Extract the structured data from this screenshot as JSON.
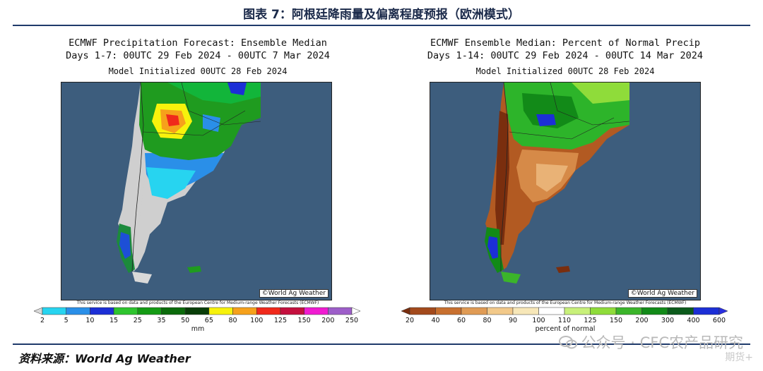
{
  "figure": {
    "title": "图表 7：阿根廷降雨量及偏离程度预报（欧洲模式）",
    "source": "资料来源：World Ag Weather",
    "watermark": "公众号 · CFC农产品研究",
    "watermark_sub": "期货+"
  },
  "maps": [
    {
      "title_line1": "ECMWF Precipitation Forecast: Ensemble Median",
      "title_line2": "Days 1-7: 00UTC 29 Feb 2024 - 00UTC 7 Mar 2024",
      "initialized": "Model Initialized 00UTC 28 Feb 2024",
      "credit": "©World Ag Weather",
      "disclaimer": "This service is based on data and products of the European Centre for Medium-range Weather Forecasts (ECMWF)",
      "legend_ticks": [
        "2",
        "5",
        "10",
        "15",
        "25",
        "35",
        "50",
        "65",
        "80",
        "100",
        "125",
        "150",
        "200",
        "250"
      ],
      "legend_colors": [
        "#d9d9d9",
        "#27d4f0",
        "#2a8fe8",
        "#1c2fd6",
        "#2ec42e",
        "#149a14",
        "#0b6b0b",
        "#083d08",
        "#f7f20c",
        "#f6a11b",
        "#f0291b",
        "#c4103e",
        "#f01bd1",
        "#9d5ec9",
        "#ffffff"
      ],
      "unit": "mm"
    },
    {
      "title_line1": "ECMWF Ensemble Median: Percent of Normal Precip",
      "title_line2": "Days 1-14: 00UTC 29 Feb 2024 - 00UTC 14 Mar 2024",
      "initialized": "Model Initialized 00UTC 28 Feb 2024",
      "credit": "©World Ag Weather",
      "disclaimer": "This service is based on data and products of the European Centre for Medium-range Weather Forecasts (ECMWF)",
      "legend_ticks": [
        "20",
        "40",
        "60",
        "80",
        "90",
        "100",
        "110",
        "125",
        "150",
        "200",
        "300",
        "400",
        "600"
      ],
      "legend_colors": [
        "#7a2e0e",
        "#a34a1c",
        "#c8702f",
        "#e09b55",
        "#f2c98a",
        "#f7e7b8",
        "#ffffff",
        "#c8f07a",
        "#8fdc3a",
        "#3bb42a",
        "#128a18",
        "#0b5a1b",
        "#1c2fd6",
        "#2a2fe0"
      ],
      "unit": "percent of normal"
    }
  ]
}
